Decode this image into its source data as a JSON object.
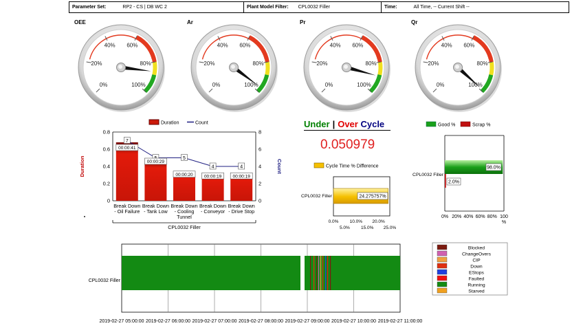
{
  "filters": {
    "parameter_set": {
      "label": "Parameter Set:",
      "value": "RP2 - CS | DB WC 2"
    },
    "plant_model": {
      "label": "Plant Model Filter:",
      "value": "CPL0032 Filler"
    },
    "time": {
      "label": "Time:",
      "value": "All Time, -- Current Shift --"
    }
  },
  "gauges": [
    {
      "title": "OEE",
      "value_pct": 86
    },
    {
      "title": "Ar",
      "value_pct": 97
    },
    {
      "title": "Pr",
      "value_pct": 89
    },
    {
      "title": "Qr",
      "value_pct": 99
    }
  ],
  "gauge_ticks": [
    "0%",
    "20%",
    "40%",
    "60%",
    "80%",
    "100%"
  ],
  "downtime_chart": {
    "legend": {
      "duration": "Duration",
      "count": "Count"
    },
    "ylabel_left": "Duration",
    "ylabel_right": "Count",
    "y_ticks_left": [
      "0",
      "0.2",
      "0.4",
      "0.6",
      "0.8"
    ],
    "y_ticks_right": [
      "0",
      "2",
      "4",
      "6",
      "8"
    ],
    "group_label": "CPL0032 Filler",
    "categories": [
      [
        "Break Down",
        "- Oil Failure"
      ],
      [
        "Break Down",
        "- Tank Low"
      ],
      [
        "Break Down",
        "- Cooling",
        "Tunnel"
      ],
      [
        "Break Down",
        "- Conveyor"
      ],
      [
        "Break Down",
        "- Drive Stop"
      ]
    ],
    "durations": [
      0.68,
      0.48,
      0.33,
      0.31,
      0.31
    ],
    "duration_labels": [
      "00:00:41",
      "00:00:29",
      "00:00:20",
      "00:00:19",
      "00:00:19"
    ],
    "counts": [
      7,
      5,
      5,
      4,
      4
    ],
    "count_labels": [
      "7",
      "5",
      "5",
      "4",
      "4"
    ],
    "colors": {
      "duration": "#cc1a0a",
      "count": "#1c1c80"
    }
  },
  "cycle": {
    "under": "Under",
    "separator": "|",
    "over": "Over",
    "cycle": "Cycle",
    "value": "0.050979",
    "legend": "Cycle Time % Difference",
    "category": "CPL0032 Filler",
    "bar_value": 24.275757,
    "bar_label": "24.275757%",
    "ticks_top": [
      "0.0%",
      "10.0%",
      "20.0%"
    ],
    "ticks_bottom": [
      "5.0%",
      "15.0%",
      "25.0%"
    ],
    "color": "#f5c000"
  },
  "quality": {
    "legend": {
      "good": "Good %",
      "scrap": "Scrap %"
    },
    "category": "CPL0032 Filler",
    "good": 98,
    "scrap": 2,
    "good_label": "98.0%",
    "scrap_label": "2.0%",
    "ticks": [
      "0%",
      "20%",
      "40%",
      "60%",
      "80%",
      "100",
      "%"
    ],
    "colors": {
      "good": "#1aa01a",
      "scrap": "#c01010"
    }
  },
  "timeline": {
    "category": "CPL0032 Filler",
    "ticks": [
      "2019-02-27 05:00:00",
      "2019-02-27 06:00:00",
      "2019-02-27 07:00:00",
      "2019-02-27 08:00:00",
      "2019-02-27 09:00:00",
      "2019-02-27 10:00:00",
      "2019-02-27 11:00:00"
    ],
    "legend": [
      {
        "label": "Blocked",
        "color": "#7b1a10"
      },
      {
        "label": "ChangeOvers",
        "color": "#d060b0"
      },
      {
        "label": "CIP",
        "color": "#f0a040"
      },
      {
        "label": "Down",
        "color": "#e03010"
      },
      {
        "label": "EStops",
        "color": "#2040e0"
      },
      {
        "label": "Faulted",
        "color": "#f01010"
      },
      {
        "label": "Running",
        "color": "#138a13"
      },
      {
        "label": "Starved",
        "color": "#f0a020"
      }
    ]
  }
}
